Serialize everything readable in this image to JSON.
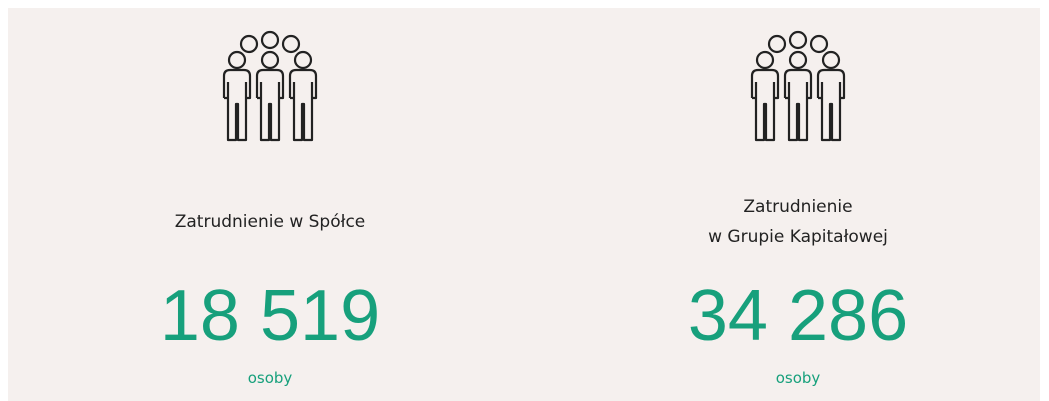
{
  "items": [
    {
      "label": [
        "Zatrudnienie w Spółce"
      ],
      "value": "18 519",
      "unit": "osoby"
    },
    {
      "label": [
        "Zatrudnienie",
        "w Grupie Kapitałowej"
      ],
      "value": "34 286",
      "unit": "osoby"
    }
  ]
}
